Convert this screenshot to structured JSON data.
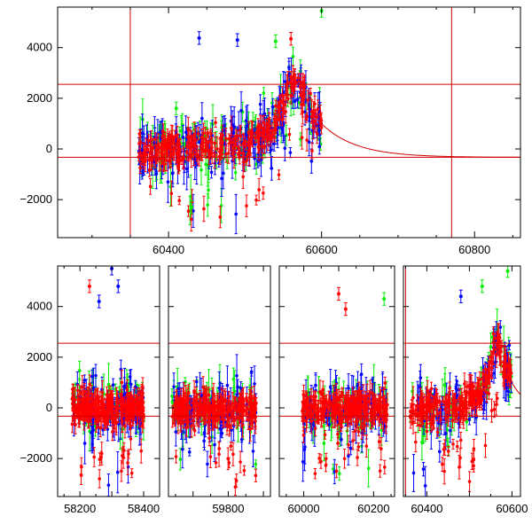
{
  "colors": {
    "red": "#ff0000",
    "green": "#00ee00",
    "blue": "#0000ff",
    "ref_line": "#d00000",
    "frame": "#000000"
  },
  "chart_data": [
    {
      "type": "scatter",
      "panel": "top",
      "title": "",
      "xlabel": "",
      "ylabel": "",
      "xlim": [
        60255,
        60860
      ],
      "ylim": [
        -3500,
        5600
      ],
      "x_ticks": [
        60400,
        60600,
        60800
      ],
      "y_ticks": [
        -2000,
        0,
        2000,
        4000
      ],
      "x_tick_labels": [
        "60400",
        "60600",
        "60800"
      ],
      "y_tick_labels": [
        "−2000",
        "0",
        "2000",
        "4000"
      ],
      "hlines": [
        2550,
        -330
      ],
      "vlines": [
        60350,
        60770
      ],
      "model_curve": {
        "x_start": 60595,
        "x_end": 60860,
        "y_start": 1150,
        "y_end": -330,
        "decay_days": 45
      },
      "series": [
        {
          "color_key": "green",
          "density": [
            [
              60360,
              60600,
              130
            ]
          ]
        },
        {
          "color_key": "blue",
          "density": [
            [
              60360,
              60600,
              200
            ]
          ]
        },
        {
          "color_key": "red",
          "density": [
            [
              60360,
              60600,
              320
            ]
          ]
        }
      ],
      "envelope": [
        [
          60360,
          0
        ],
        [
          60420,
          50
        ],
        [
          60480,
          150
        ],
        [
          60520,
          400
        ],
        [
          60540,
          1000
        ],
        [
          60555,
          2000
        ],
        [
          60565,
          2800
        ],
        [
          60575,
          2200
        ],
        [
          60585,
          1500
        ],
        [
          60600,
          1150
        ]
      ],
      "outliers": [
        {
          "x": 60440,
          "y": 4380,
          "color": "blue"
        },
        {
          "x": 60600,
          "y": 5450,
          "color": "green"
        },
        {
          "x": 60540,
          "y": 4250,
          "color": "green"
        },
        {
          "x": 60560,
          "y": 4350,
          "color": "red"
        },
        {
          "x": 60490,
          "y": 4300,
          "color": "blue"
        },
        {
          "x": 60410,
          "y": 1600,
          "color": "green"
        },
        {
          "x": 60430,
          "y": -2300,
          "color": "green"
        }
      ]
    },
    {
      "type": "scatter",
      "panel": "bottom",
      "title": "",
      "xlabel": "",
      "ylabel": "",
      "broken_axis": true,
      "ylim": [
        -3500,
        5600
      ],
      "y_ticks": [
        -2000,
        0,
        2000,
        4000
      ],
      "y_tick_labels": [
        "−2000",
        "0",
        "2000",
        "4000"
      ],
      "hlines": [
        2550,
        -330
      ],
      "segments": [
        {
          "xlim": [
            58130,
            58450
          ],
          "x_ticks": [
            58200,
            58300,
            58400
          ],
          "x_tick_labels": [
            "58200",
            "",
            "58400"
          ],
          "data_range": [
            58175,
            58400
          ],
          "vlines": []
        },
        {
          "xlim": [
            59630,
            59920
          ],
          "x_ticks": [
            59800
          ],
          "x_tick_labels": [
            "59800"
          ],
          "data_range": [
            59640,
            59880
          ],
          "vlines": []
        },
        {
          "xlim": [
            59930,
            60260
          ],
          "x_ticks": [
            60000,
            60200
          ],
          "x_tick_labels": [
            "60000",
            "60200"
          ],
          "data_range": [
            59995,
            60240
          ],
          "vlines": []
        },
        {
          "xlim": [
            60345,
            60620
          ],
          "x_ticks": [
            60400,
            60600
          ],
          "x_tick_labels": [
            "60400",
            "60600"
          ],
          "data_range": [
            60360,
            60600
          ],
          "vlines": [
            60350
          ],
          "model_curve": {
            "x_start": 60595,
            "x_end": 60620,
            "y_start": 1150,
            "y_end": -330,
            "decay_days": 45
          }
        }
      ],
      "outliers": [
        {
          "x": 58230,
          "y": 4800,
          "color": "red"
        },
        {
          "x": 58260,
          "y": 4200,
          "color": "blue"
        },
        {
          "x": 58300,
          "y": 5500,
          "color": "blue"
        },
        {
          "x": 58320,
          "y": 4800,
          "color": "blue"
        },
        {
          "x": 60100,
          "y": 4500,
          "color": "red"
        },
        {
          "x": 60120,
          "y": 3900,
          "color": "red"
        },
        {
          "x": 60230,
          "y": 4300,
          "color": "green"
        },
        {
          "x": 60480,
          "y": 4400,
          "color": "blue"
        },
        {
          "x": 60530,
          "y": 4800,
          "color": "green"
        },
        {
          "x": 60590,
          "y": 5400,
          "color": "green"
        }
      ]
    }
  ]
}
